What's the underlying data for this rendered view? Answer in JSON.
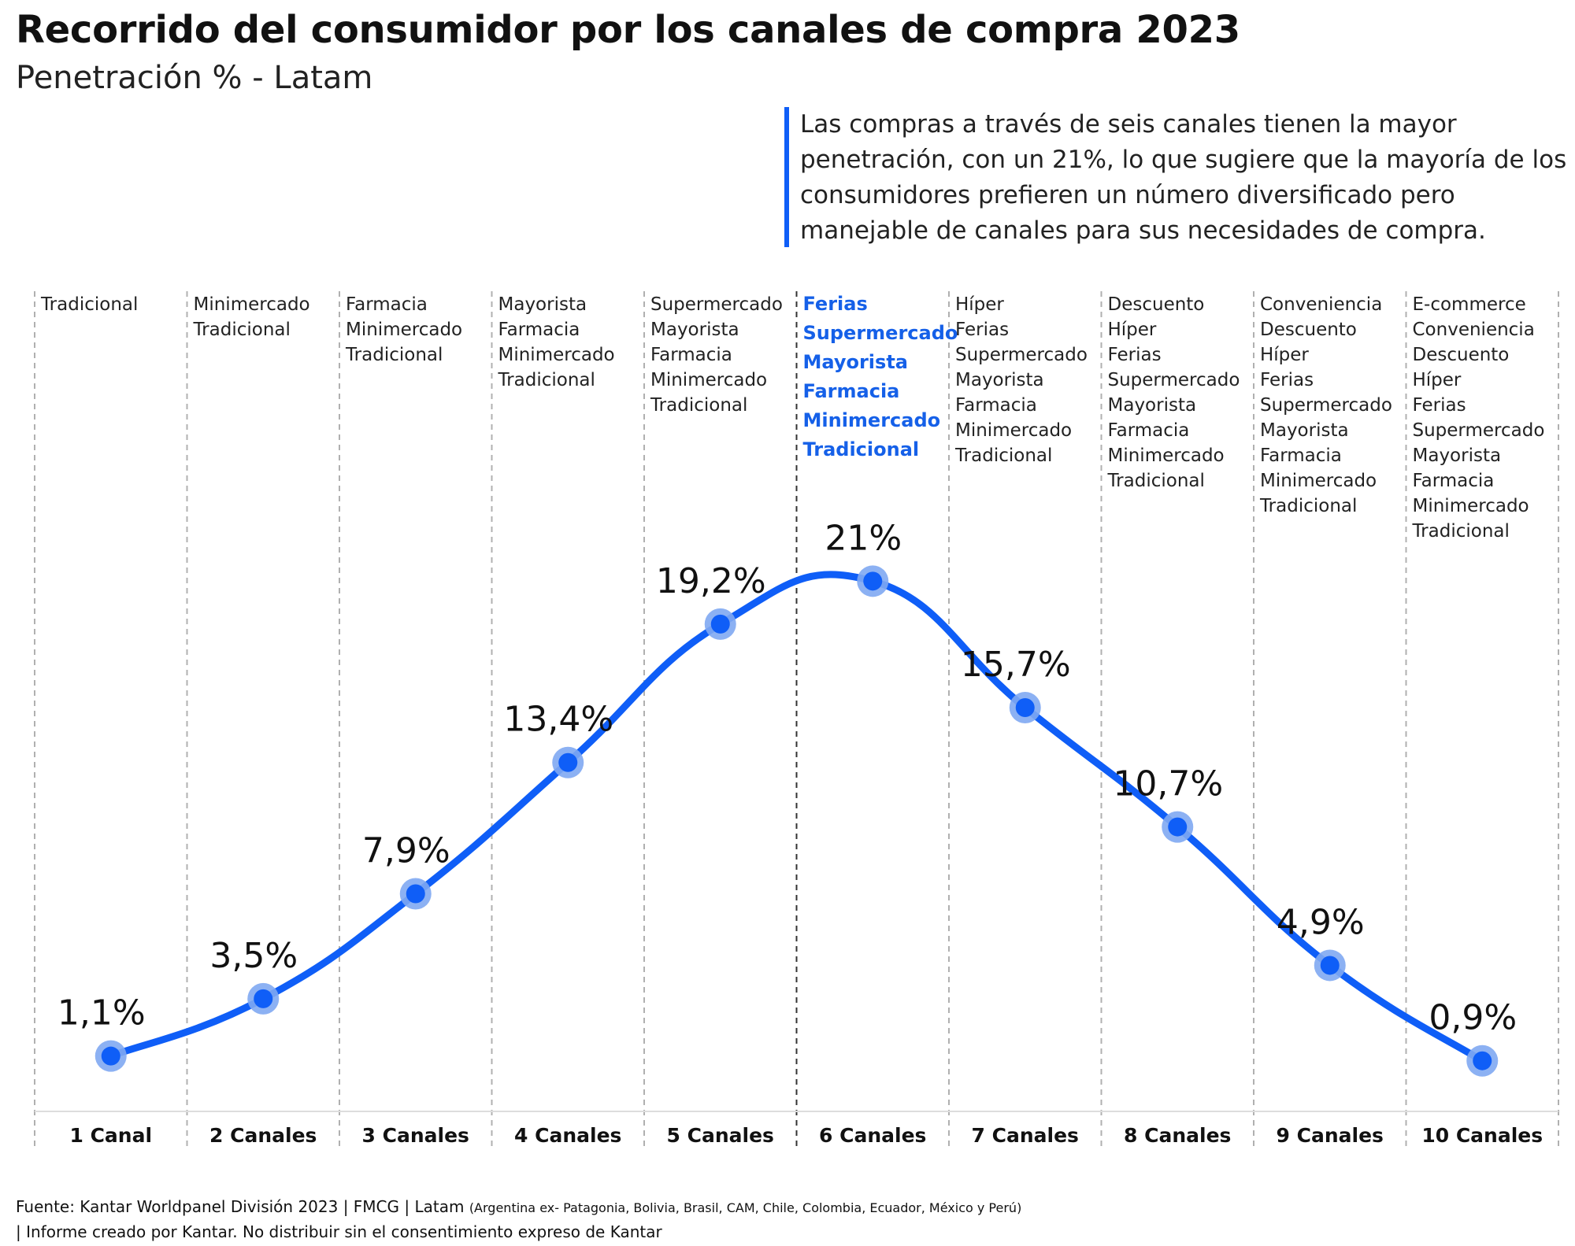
{
  "header": {
    "title": "Recorrido del consumidor por los canales de compra 2023",
    "subtitle": "Penetración % - Latam"
  },
  "callout": {
    "text": "Las compras a través de seis canales tienen la mayor penetración, con un 21%, lo que sugiere que la mayoría de los consumidores prefieren un número diversificado pero manejable de canales para sus necesidades de compra."
  },
  "footer": {
    "source_main": "Fuente: Kantar Worldpanel División 2023 | FMCG | Latam",
    "source_detail": "(Argentina ex- Patagonia, Bolivia, Brasil, CAM, Chile, Colombia, Ecuador, México y Perú)",
    "source_line2": "| Informe creado por Kantar. No distribuir sin el consentimiento expreso de Kantar"
  },
  "colors": {
    "line": "#0f5ef7",
    "point_halo": "#7fa8f2",
    "highlight_text": "#1560e8",
    "gridline": "#b0b0b0",
    "text": "#111111"
  },
  "chart_data": {
    "type": "line",
    "title": "Recorrido del consumidor por los canales de compra 2023",
    "subtitle": "Penetración % - Latam",
    "categories": [
      "1 Canal",
      "2 Canales",
      "3 Canales",
      "4 Canales",
      "5 Canales",
      "6 Canales",
      "7 Canales",
      "8 Canales",
      "9 Canales",
      "10 Canales"
    ],
    "series": [
      {
        "values": [
          1.1,
          3.5,
          7.9,
          13.4,
          19.2,
          21,
          15.7,
          10.7,
          4.9,
          0.9
        ],
        "labels": [
          "1,1%",
          "3,5%",
          "7,9%",
          "13,4%",
          "19,2%",
          "21%",
          "15,7%",
          "10,7%",
          "4,9%",
          "0,9%"
        ]
      }
    ],
    "highlight_index": 5,
    "channels": [
      [
        "Tradicional"
      ],
      [
        "Minimercado",
        "Tradicional"
      ],
      [
        "Farmacia",
        "Minimercado",
        "Tradicional"
      ],
      [
        "Mayorista",
        "Farmacia",
        "Minimercado",
        "Tradicional"
      ],
      [
        "Supermercado",
        "Mayorista",
        "Farmacia",
        "Minimercado",
        "Tradicional"
      ],
      [
        "Ferias",
        "Supermercado",
        "Mayorista",
        "Farmacia",
        "Minimercado",
        "Tradicional"
      ],
      [
        "Híper",
        "Ferias",
        "Supermercado",
        "Mayorista",
        "Farmacia",
        "Minimercado",
        "Tradicional"
      ],
      [
        "Descuento",
        "Híper",
        "Ferias",
        "Supermercado",
        "Mayorista",
        "Farmacia",
        "Minimercado",
        "Tradicional"
      ],
      [
        "Conveniencia",
        "Descuento",
        "Híper",
        "Ferias",
        "Supermercado",
        "Mayorista",
        "Farmacia",
        "Minimercado",
        "Tradicional"
      ],
      [
        "E-commerce",
        "Conveniencia",
        "Descuento",
        "Híper",
        "Ferias",
        "Supermercado",
        "Mayorista",
        "Farmacia",
        "Minimercado",
        "Tradicional"
      ]
    ],
    "ylim": [
      0,
      22
    ],
    "grid": false,
    "legend": "none"
  }
}
